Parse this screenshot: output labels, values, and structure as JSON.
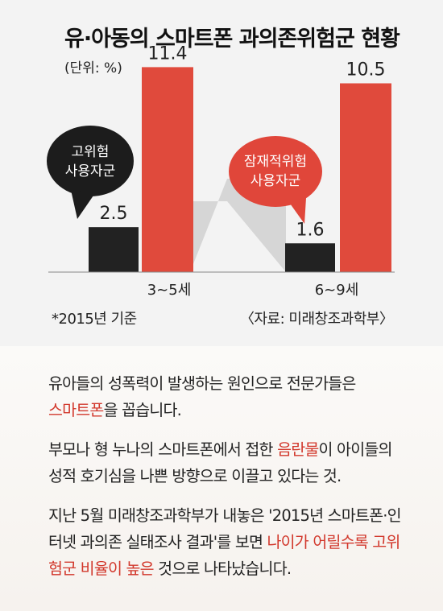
{
  "chart_data": {
    "type": "bar",
    "title": "유·아동의 스마트폰 과의존위험군 현황",
    "unit": "(단위: %)",
    "categories": [
      "3~5세",
      "6~9세"
    ],
    "series": [
      {
        "name": "고위험 사용자군",
        "color": "#222222",
        "values": [
          2.5,
          1.6
        ]
      },
      {
        "name": "잠재적위험 사용자군",
        "color": "#e04a3c",
        "values": [
          11.4,
          10.5
        ]
      }
    ],
    "value_labels": [
      "2.5",
      "11.4",
      "1.6",
      "10.5"
    ],
    "callouts": [
      {
        "line1": "고위험",
        "line2": "사용자군"
      },
      {
        "line1": "잠재적위험",
        "line2": "사용자군"
      }
    ],
    "ylim": [
      0,
      12
    ],
    "note": "*2015년 기준",
    "source": "〈자료: 미래창조과학부〉"
  },
  "body": {
    "p1": {
      "a": "유아들의 성폭력이 발생하는 원인으로 전문가들은",
      "b": "스마트폰",
      "c": "을 꼽습니다."
    },
    "p2": {
      "a": "부모나 형 누나의 스마트폰에서 접한 ",
      "b": "음란물",
      "c": "이 아이들의 성적 호기심을 나쁜 방향으로 이끌고 있다는 것."
    },
    "p3": {
      "a": "지난 5월 미래창조과학부가 내놓은 '2015년 스마트폰·인터넷 과의존 실태조사 결과'를 보면 ",
      "b": "나이가 어릴수록 고위험군 비율이 높은",
      "c": " 것으로 나타났습니다."
    }
  }
}
